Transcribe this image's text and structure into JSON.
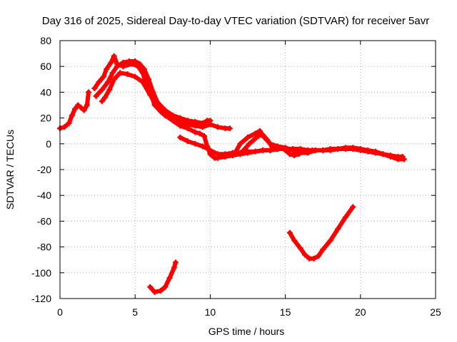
{
  "chart_data": {
    "type": "scatter",
    "title": "Day 316 of 2025, Sidereal Day-to-day VTEC variation (SDTVAR) for receiver 5avr",
    "xlabel": "GPS time / hours",
    "ylabel": "SDTVAR / TECUs",
    "xlim": [
      0,
      25
    ],
    "ylim": [
      -120,
      80
    ],
    "xticks": [
      0,
      5,
      10,
      15,
      20,
      25
    ],
    "yticks": [
      -120,
      -100,
      -80,
      -60,
      -40,
      -20,
      0,
      20,
      40,
      60,
      80
    ],
    "grid": true,
    "legend": "none",
    "series_color": "#ff0000",
    "series": [
      {
        "name": "trace-1",
        "x": [
          0.0,
          0.3,
          0.6,
          0.8,
          1.0,
          1.2,
          1.4,
          1.6,
          1.8,
          1.9
        ],
        "y": [
          12,
          13,
          16,
          22,
          27,
          30,
          28,
          26,
          30,
          40
        ]
      },
      {
        "name": "trace-2",
        "x": [
          2.3,
          2.6,
          2.9,
          3.1,
          3.4,
          3.6,
          3.8,
          4.2,
          4.8,
          5.2,
          5.5,
          5.7,
          6.0,
          6.3,
          6.7,
          7.0,
          7.5,
          8.0,
          8.5,
          9.0,
          9.5,
          10.0,
          10.5,
          11.0,
          11.3
        ],
        "y": [
          43,
          48,
          52,
          58,
          63,
          68,
          62,
          60,
          62,
          60,
          55,
          48,
          40,
          30,
          25,
          22,
          19,
          17,
          15,
          14,
          13,
          15,
          13,
          12,
          12
        ]
      },
      {
        "name": "trace-3",
        "x": [
          2.4,
          2.8,
          3.2,
          3.5,
          3.8,
          4.2,
          4.6,
          5.0,
          5.3,
          5.6,
          5.9,
          6.2,
          6.5,
          7.0,
          7.5,
          8.0,
          8.5,
          9.0,
          9.5,
          9.8,
          10.0
        ],
        "y": [
          37,
          42,
          48,
          55,
          60,
          63,
          64,
          64,
          62,
          58,
          50,
          40,
          32,
          26,
          22,
          20,
          18,
          17,
          16,
          18,
          18
        ]
      },
      {
        "name": "trace-4",
        "x": [
          2.8,
          3.0,
          3.3,
          3.6,
          4.0,
          4.5,
          5.0,
          5.5,
          6.0,
          6.5,
          7.0,
          7.5,
          8.0,
          8.5,
          9.0,
          9.3,
          9.6,
          9.8,
          10.0,
          10.3,
          10.5,
          11.0,
          11.5,
          12.0,
          12.5,
          13.0,
          13.5,
          14.0,
          14.5,
          15.0,
          15.5,
          16.0
        ],
        "y": [
          33,
          36,
          42,
          50,
          55,
          54,
          52,
          48,
          38,
          28,
          22,
          18,
          14,
          12,
          9,
          8,
          6,
          -2,
          -8,
          -11,
          -11,
          -10,
          -9,
          -8,
          -7,
          -6,
          -5,
          -5,
          -4,
          -4,
          -4,
          -5
        ]
      },
      {
        "name": "trace-5",
        "x": [
          8.0,
          8.5,
          9.0,
          9.5,
          10.0,
          10.5,
          11.0,
          11.5,
          12.0,
          12.5,
          13.0,
          13.5,
          14.0,
          14.5,
          15.0,
          15.5,
          16.0,
          16.5,
          17.0,
          17.5,
          18.0,
          18.5,
          19.0,
          19.5,
          20.0,
          20.5,
          21.0,
          21.5,
          22.0,
          22.5,
          22.8
        ],
        "y": [
          5,
          2,
          0,
          -2,
          -5,
          -8,
          -8,
          -7,
          -7,
          -6,
          -6,
          -5,
          -5,
          -4,
          -4,
          -4,
          -4,
          -5,
          -5,
          -5,
          -5,
          -4,
          -4,
          -4,
          -5,
          -6,
          -7,
          -8,
          -9,
          -10,
          -10
        ]
      },
      {
        "name": "trace-6",
        "x": [
          11.7,
          12.0,
          12.5,
          13.0,
          13.3,
          13.6,
          14.0,
          14.5,
          15.0,
          15.5,
          16.0,
          16.5,
          17.0,
          17.5,
          18.0,
          18.5,
          19.0,
          19.5,
          20.0,
          20.5,
          21.0,
          21.5,
          22.0,
          22.5,
          22.9
        ],
        "y": [
          -6,
          0,
          5,
          8,
          10,
          5,
          0,
          -2,
          -3,
          -5,
          -7,
          -7,
          -5,
          -5,
          -4,
          -4,
          -3,
          -3,
          -4,
          -5,
          -6,
          -8,
          -10,
          -12,
          -12
        ]
      },
      {
        "name": "trace-7",
        "x": [
          12.0,
          12.3,
          12.6,
          12.9,
          13.2,
          13.5,
          13.8,
          14.1,
          14.4,
          14.7,
          15.0,
          15.3,
          15.6,
          15.9,
          16.2,
          16.5,
          16.8
        ],
        "y": [
          -8,
          -4,
          0,
          3,
          6,
          7,
          3,
          -2,
          -4,
          -3,
          -5,
          -8,
          -9,
          -8,
          -6,
          -5,
          -5
        ]
      },
      {
        "name": "trace-8",
        "x": [
          6.0,
          6.3,
          6.7,
          7.0,
          7.3,
          7.6,
          7.7
        ],
        "y": [
          -111,
          -115,
          -114,
          -111,
          -104,
          -96,
          -92
        ]
      },
      {
        "name": "trace-9",
        "x": [
          15.3,
          15.6,
          16.0,
          16.3,
          16.6,
          16.9,
          17.2,
          17.5,
          18.0,
          18.5,
          19.0,
          19.5
        ],
        "y": [
          -69,
          -75,
          -81,
          -86,
          -89,
          -89,
          -87,
          -82,
          -75,
          -66,
          -57,
          -49
        ]
      }
    ]
  }
}
